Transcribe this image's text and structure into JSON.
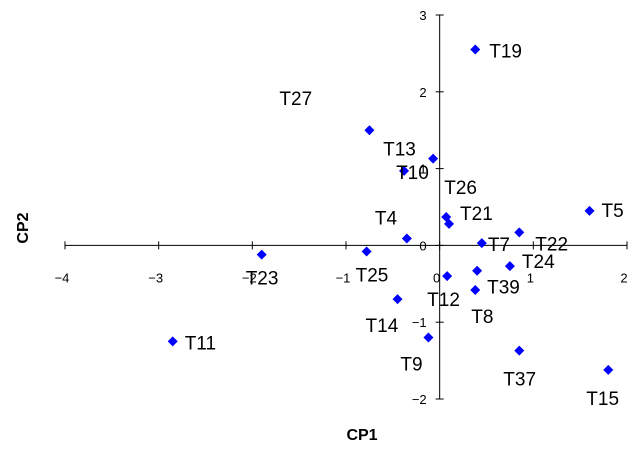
{
  "chart_data": {
    "type": "scatter",
    "xlabel": "CP1",
    "ylabel": "CP2",
    "xlim": [
      -4,
      2
    ],
    "ylim": [
      -2,
      3
    ],
    "x_ticks": [
      -4,
      -3,
      -2,
      -1,
      0,
      1,
      2
    ],
    "y_ticks": [
      -2,
      -1,
      0,
      1,
      2,
      3
    ],
    "grid": false,
    "marker": "diamond",
    "marker_color": "#0000ff",
    "points": [
      {
        "label": "T19",
        "x": 0.38,
        "y": 2.55
      },
      {
        "label": "T27",
        "x": -0.75,
        "y": 1.5
      },
      {
        "label": "T13",
        "x": -0.07,
        "y": 1.13
      },
      {
        "label": "T10",
        "x": -0.38,
        "y": 0.97
      },
      {
        "label": "T26",
        "x": 0.07,
        "y": 0.37
      },
      {
        "label": "T21",
        "x": 0.1,
        "y": 0.28
      },
      {
        "label": "T5",
        "x": 1.6,
        "y": 0.45
      },
      {
        "label": "T22",
        "x": 0.85,
        "y": 0.17
      },
      {
        "label": "T4",
        "x": -0.35,
        "y": 0.09
      },
      {
        "label": "T7",
        "x": 0.45,
        "y": 0.03
      },
      {
        "label": "T23",
        "x": -1.9,
        "y": -0.12
      },
      {
        "label": "T25",
        "x": -0.78,
        "y": -0.08
      },
      {
        "label": "T24",
        "x": 0.75,
        "y": -0.27
      },
      {
        "label": "T12",
        "x": 0.08,
        "y": -0.4
      },
      {
        "label": "T39",
        "x": 0.4,
        "y": -0.33
      },
      {
        "label": "T8",
        "x": 0.38,
        "y": -0.58
      },
      {
        "label": "T14",
        "x": -0.45,
        "y": -0.7
      },
      {
        "label": "T9",
        "x": -0.12,
        "y": -1.2
      },
      {
        "label": "T11",
        "x": -2.85,
        "y": -1.25
      },
      {
        "label": "T37",
        "x": 0.85,
        "y": -1.37
      },
      {
        "label": "T15",
        "x": 1.8,
        "y": -1.62
      }
    ]
  }
}
